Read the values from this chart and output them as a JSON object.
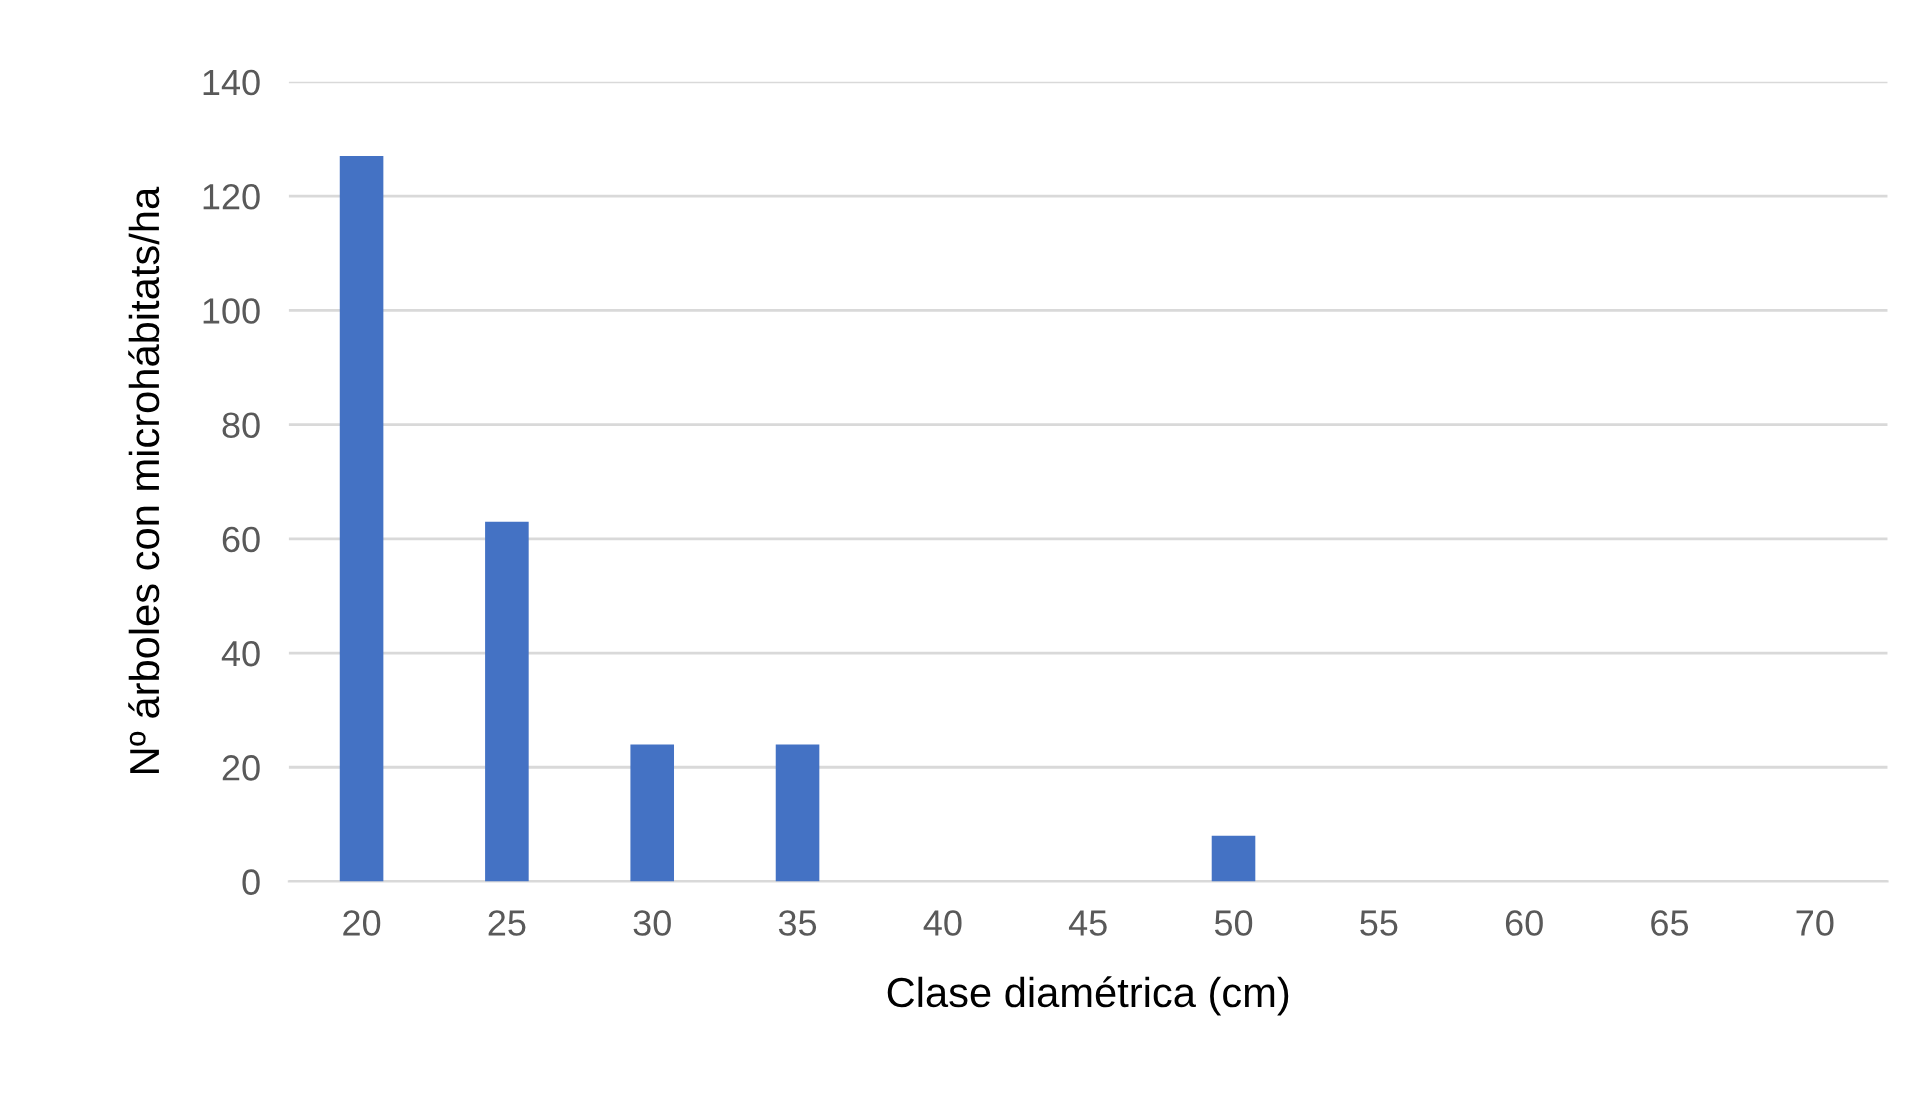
{
  "chart_data": {
    "type": "bar",
    "xlabel": "Clase diamétrica (cm)",
    "ylabel": "Nº árboles con microhábitats/ha",
    "categories": [
      "20",
      "25",
      "30",
      "35",
      "40",
      "45",
      "50",
      "55",
      "60",
      "65",
      "70"
    ],
    "values": [
      127,
      63,
      24,
      24,
      0,
      0,
      8,
      0,
      0,
      0,
      0
    ],
    "color": "#4472c4",
    "ylim": [
      0,
      140
    ],
    "yticks": [
      0,
      20,
      40,
      60,
      80,
      100,
      120,
      140
    ],
    "grid": "y",
    "legend": false
  }
}
